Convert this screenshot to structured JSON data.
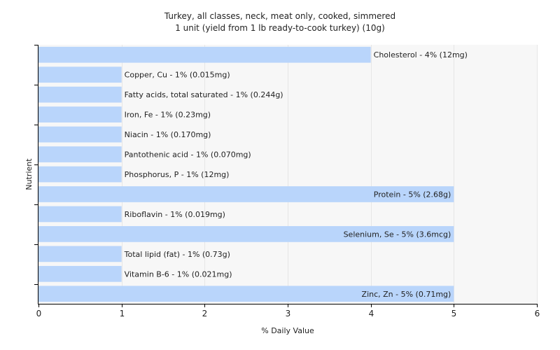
{
  "chart_data": {
    "type": "bar",
    "orientation": "horizontal",
    "title": "Turkey, all classes, neck, meat only, cooked, simmered",
    "subtitle": "1 unit (yield from 1 lb ready-to-cook turkey) (10g)",
    "xlabel": "% Daily Value",
    "ylabel": "Nutrient",
    "xlim": [
      0,
      6
    ],
    "xticks": [
      0,
      1,
      2,
      3,
      4,
      5,
      6
    ],
    "grid": true,
    "bar_color": "#b9d5fb",
    "categories": [
      "Cholesterol",
      "Copper, Cu",
      "Fatty acids, total saturated",
      "Iron, Fe",
      "Niacin",
      "Pantothenic acid",
      "Phosphorus, P",
      "Protein",
      "Riboflavin",
      "Selenium, Se",
      "Total lipid (fat)",
      "Vitamin B-6",
      "Zinc, Zn"
    ],
    "values": [
      4,
      1,
      1,
      1,
      1,
      1,
      1,
      5,
      1,
      5,
      1,
      1,
      5
    ],
    "labels": [
      "Cholesterol - 4% (12mg)",
      "Copper, Cu - 1% (0.015mg)",
      "Fatty acids, total saturated - 1% (0.244g)",
      "Iron, Fe - 1% (0.23mg)",
      "Niacin - 1% (0.170mg)",
      "Pantothenic acid - 1% (0.070mg)",
      "Phosphorus, P - 1% (12mg)",
      "Protein - 5% (2.68g)",
      "Riboflavin - 1% (0.019mg)",
      "Selenium, Se - 5% (3.6mcg)",
      "Total lipid (fat) - 1% (0.73g)",
      "Vitamin B-6 - 1% (0.021mg)",
      "Zinc, Zn - 5% (0.71mg)"
    ]
  }
}
